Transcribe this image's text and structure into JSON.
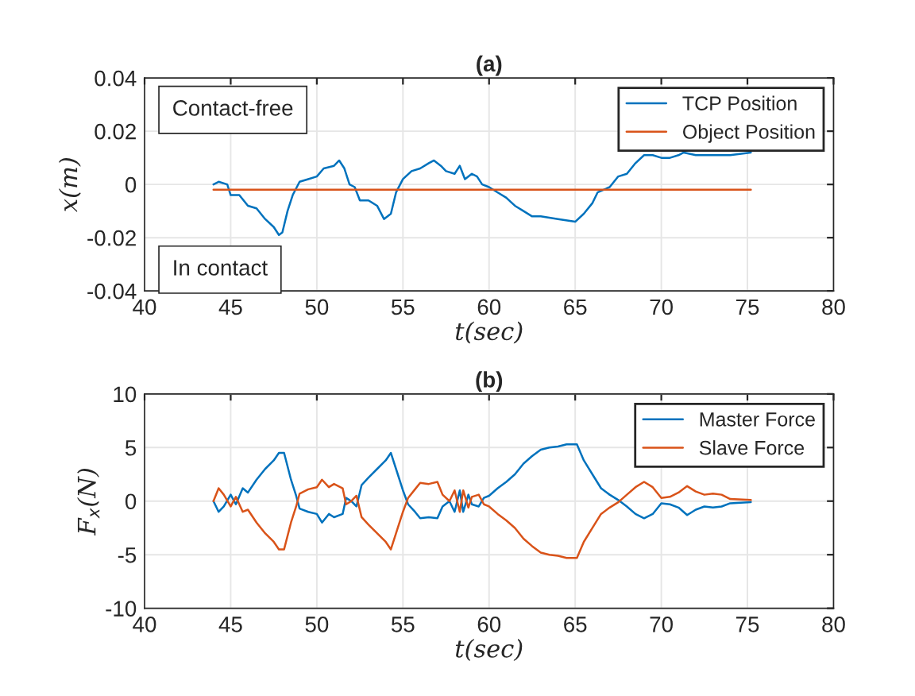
{
  "chart_data": [
    {
      "type": "line",
      "title": "(a)",
      "xlabel": "t(sec)",
      "ylabel": "x(m)",
      "xlim": [
        40,
        80
      ],
      "ylim": [
        -0.04,
        0.04
      ],
      "xticks": [
        40,
        45,
        50,
        55,
        60,
        65,
        70,
        75,
        80
      ],
      "yticks": [
        -0.04,
        -0.02,
        0,
        0.02,
        0.04
      ],
      "grid": true,
      "legend": "top right",
      "annotations": [
        "Contact-free",
        "In contact"
      ],
      "series": [
        {
          "name": "TCP Position",
          "color": "#0072bd",
          "x": [
            44,
            44.3,
            44.8,
            45,
            45.5,
            46,
            46.5,
            47,
            47.5,
            47.8,
            48,
            48.3,
            48.6,
            49,
            49.5,
            50,
            50.4,
            51,
            51.3,
            51.6,
            51.9,
            52.2,
            52.5,
            53,
            53.5,
            53.9,
            54.3,
            54.6,
            55,
            55.5,
            56,
            56.5,
            56.8,
            57.2,
            57.5,
            58,
            58.3,
            58.6,
            59,
            59.3,
            59.6,
            60,
            60.5,
            61,
            61.5,
            62,
            62.5,
            63,
            64,
            65,
            65.5,
            66,
            66.3,
            67,
            67.5,
            68,
            68.5,
            69,
            69.5,
            70,
            70.5,
            71,
            71.3,
            72,
            73,
            74,
            75.2
          ],
          "values": [
            0,
            0.001,
            0,
            -0.004,
            -0.004,
            -0.008,
            -0.009,
            -0.013,
            -0.016,
            -0.019,
            -0.018,
            -0.01,
            -0.004,
            0.001,
            0.002,
            0.003,
            0.006,
            0.007,
            0.009,
            0.006,
            0,
            -0.001,
            -0.006,
            -0.006,
            -0.008,
            -0.013,
            -0.011,
            -0.003,
            0.002,
            0.005,
            0.006,
            0.008,
            0.009,
            0.007,
            0.005,
            0.004,
            0.007,
            0.002,
            0.004,
            0.003,
            0,
            -0.001,
            -0.003,
            -0.005,
            -0.008,
            -0.01,
            -0.012,
            -0.012,
            -0.013,
            -0.014,
            -0.011,
            -0.007,
            -0.003,
            -0.001,
            0.003,
            0.004,
            0.008,
            0.011,
            0.011,
            0.01,
            0.01,
            0.011,
            0.012,
            0.011,
            0.011,
            0.011,
            0.012
          ]
        },
        {
          "name": "Object Position",
          "color": "#d95319",
          "x": [
            44,
            75.2
          ],
          "values": [
            -0.002,
            -0.002
          ]
        }
      ]
    },
    {
      "type": "line",
      "title": "(b)",
      "xlabel": "t(sec)",
      "ylabel": "F$_{x}$(N)",
      "xlim": [
        40,
        80
      ],
      "ylim": [
        -10,
        10
      ],
      "xticks": [
        40,
        45,
        50,
        55,
        60,
        65,
        70,
        75,
        80
      ],
      "yticks": [
        -10,
        -5,
        0,
        5,
        10
      ],
      "grid": true,
      "legend": "top right",
      "x": [
        44,
        44.3,
        44.6,
        45,
        45.3,
        45.7,
        46,
        46.5,
        47,
        47.5,
        47.8,
        48.1,
        48.5,
        48.8,
        49,
        49.5,
        50,
        50.3,
        50.7,
        51,
        51.5,
        51.7,
        52,
        52.3,
        52.6,
        53,
        53.5,
        54,
        54.3,
        54.6,
        55,
        55.3,
        55.7,
        56,
        56.5,
        57,
        57.3,
        57.7,
        58,
        58.3,
        58.5,
        58.8,
        59,
        59.4,
        59.7,
        60,
        60.5,
        61,
        61.5,
        62,
        62.5,
        63,
        63.5,
        64,
        64.5,
        65.1,
        65.5,
        66,
        66.5,
        67,
        67.5,
        68,
        68.5,
        69,
        69.5,
        70,
        70.5,
        71,
        71.5,
        72,
        72.5,
        73,
        73.5,
        74,
        75.2
      ],
      "series": [
        {
          "name": "Master Force",
          "color": "#0072bd",
          "values": [
            0,
            -1,
            -0.5,
            0.6,
            -0.3,
            1.2,
            0.8,
            2,
            3,
            3.8,
            4.5,
            4.5,
            2,
            0.5,
            -0.7,
            -1,
            -1.2,
            -2,
            -1.2,
            -1.5,
            -1.2,
            0.3,
            0,
            -0.5,
            1.5,
            2.2,
            3,
            3.8,
            4.5,
            3,
            1,
            -0.3,
            -1,
            -1.6,
            -1.5,
            -1.6,
            -0.5,
            0,
            -1,
            1,
            -1,
            0.6,
            -0.3,
            -0.5,
            0.3,
            0.5,
            1.2,
            1.8,
            2.5,
            3.5,
            4.2,
            4.8,
            5,
            5.1,
            5.3,
            5.3,
            3.8,
            2.5,
            1.2,
            0.6,
            0.1,
            -0.5,
            -1.2,
            -1.6,
            -1.2,
            -0.2,
            -0.3,
            -0.6,
            -1.3,
            -0.8,
            -0.5,
            -0.6,
            -0.5,
            -0.2,
            -0.1
          ]
        },
        {
          "name": "Slave Force",
          "color": "#d95319",
          "values": [
            0,
            1.2,
            0.6,
            -0.5,
            0.4,
            -1,
            -0.8,
            -2,
            -3,
            -3.8,
            -4.5,
            -4.5,
            -2,
            -0.5,
            0.7,
            1.1,
            1.3,
            2,
            1.3,
            1.6,
            1.2,
            -0.3,
            0,
            0.5,
            -1.5,
            -2.2,
            -3,
            -3.8,
            -4.5,
            -3,
            -1,
            0.3,
            1.1,
            1.7,
            1.6,
            1.8,
            0.6,
            0,
            1,
            -1,
            1,
            -0.6,
            0.4,
            0.6,
            -0.3,
            -0.5,
            -1.2,
            -1.8,
            -2.5,
            -3.5,
            -4.2,
            -4.8,
            -5,
            -5.1,
            -5.3,
            -5.3,
            -3.8,
            -2.5,
            -1.2,
            -0.6,
            -0.1,
            0.6,
            1.3,
            1.8,
            1.3,
            0.3,
            0.4,
            0.8,
            1.4,
            0.9,
            0.6,
            0.7,
            0.6,
            0.2,
            0.1
          ]
        }
      ]
    }
  ]
}
